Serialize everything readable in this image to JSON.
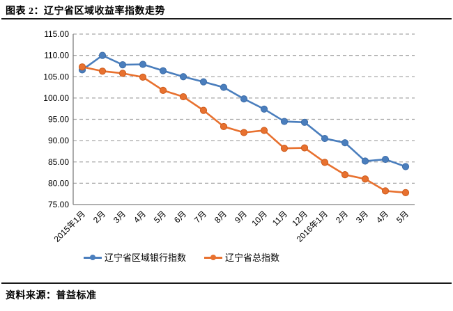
{
  "header": {
    "title": "图表 2：辽宁省区域收益率指数走势"
  },
  "footer": {
    "source": "资料来源：普益标准"
  },
  "chart_data": {
    "type": "line",
    "title": "图表 2：辽宁省区域收益率指数走势",
    "categories": [
      "2015年1月",
      "2月",
      "3月",
      "4月",
      "5月",
      "6月",
      "7月",
      "8月",
      "9月",
      "10月",
      "11月",
      "12月",
      "2016年1月",
      "2月",
      "3月",
      "4月",
      "5月"
    ],
    "series": [
      {
        "name": "辽宁省区域银行指数",
        "color": "#4A7EBD",
        "marker_border": "#3D6DA8",
        "marker": "circle",
        "values": [
          106.6,
          110.0,
          107.8,
          107.9,
          106.4,
          105.0,
          103.8,
          102.5,
          99.8,
          97.4,
          94.5,
          94.3,
          90.5,
          89.5,
          85.2,
          85.6,
          83.9
        ]
      },
      {
        "name": "辽宁省总指数",
        "color": "#E8712F",
        "marker_border": "#CC5B1C",
        "marker": "circle",
        "values": [
          107.3,
          106.3,
          105.8,
          104.9,
          101.8,
          100.3,
          97.1,
          93.3,
          91.9,
          92.4,
          88.2,
          88.3,
          84.9,
          82.0,
          81.0,
          78.2,
          77.8
        ]
      }
    ],
    "ylim": [
      75,
      115
    ],
    "yticks": [
      "115.00",
      "110.00",
      "105.00",
      "100.00",
      "95.00",
      "90.00",
      "85.00",
      "80.00",
      "75.00"
    ],
    "grid": "horizontal-dashed",
    "grid_color": "#A6A6A6",
    "axis_color": "#808080",
    "legend_position": "bottom",
    "xlabel": "",
    "ylabel": ""
  }
}
